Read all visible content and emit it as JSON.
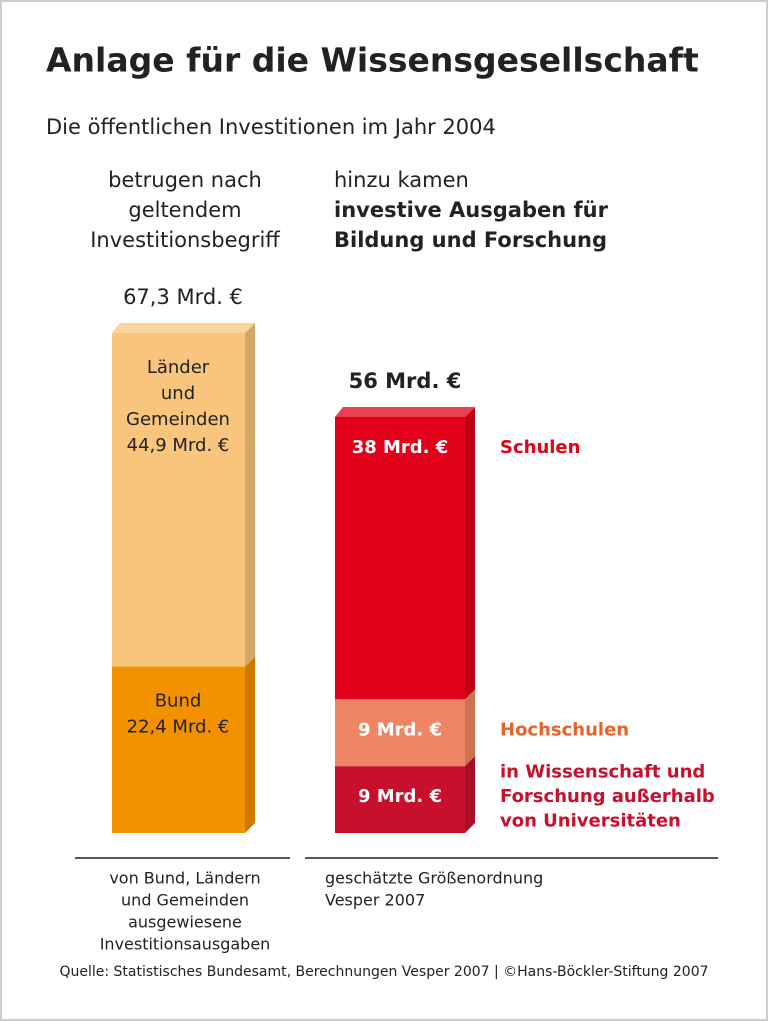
{
  "chart_data": {
    "type": "stacked_bar",
    "title": "Anlage für die Wissensgesellschaft",
    "subtitle": "Die öffentlichen Investitionen im Jahr 2004",
    "bars": [
      {
        "heading": [
          "betrugen nach",
          "geltendem",
          "Investitionsbegriff"
        ],
        "total": 67.3,
        "total_label": "67,3 Mrd. €",
        "segments": [
          {
            "name": [
              "Bund"
            ],
            "value": 22.4,
            "value_label": "22,4 Mrd. €",
            "color": "#f39200",
            "label_color": "#222222"
          },
          {
            "name": [
              "Länder",
              "und",
              "Gemeinden"
            ],
            "value": 44.9,
            "value_label": "44,9 Mrd. €",
            "color": "#f9c57c",
            "label_color": "#222222"
          }
        ],
        "footnote": [
          "von Bund, Ländern",
          "und Gemeinden",
          "ausgewiesene",
          "Investitionsausgaben"
        ]
      },
      {
        "heading": [
          "hinzu kamen",
          "investive Ausgaben für",
          "Bildung und Forschung"
        ],
        "total": 56,
        "total_label": "56 Mrd. €",
        "segments": [
          {
            "name": [
              "in Wissenschaft und",
              "Forschung außerhalb",
              "von Universitäten"
            ],
            "value": 9,
            "value_label": "9 Mrd. €",
            "color": "#c8102e",
            "label_color": "#c8102e"
          },
          {
            "name": [
              "Hochschulen"
            ],
            "value": 9,
            "value_label": "9 Mrd. €",
            "color": "#f08563",
            "label_color": "#e8632a"
          },
          {
            "name": [
              "Schulen"
            ],
            "value": 38,
            "value_label": "38 Mrd. €",
            "color": "#e2001a",
            "label_color": "#e2001a"
          }
        ],
        "footnote": [
          "geschätzte Größenordnung",
          "Vesper 2007"
        ]
      }
    ],
    "source": "Quelle: Statistisches Bundesamt, Berechnungen Vesper 2007 | ©Hans-Böckler-Stiftung 2007"
  }
}
